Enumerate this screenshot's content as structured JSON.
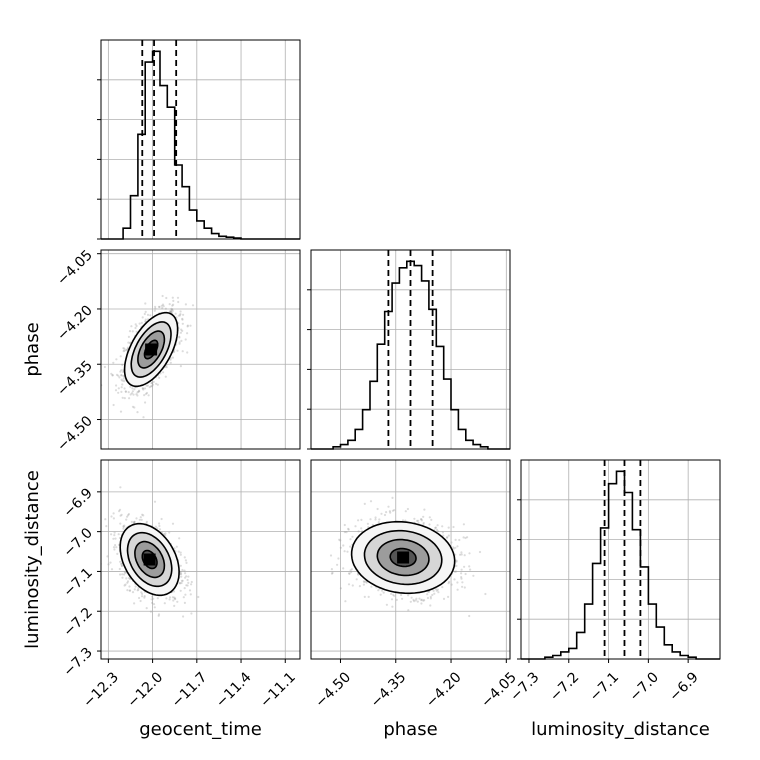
{
  "chart_data": {
    "type": "corner",
    "parameters": [
      "geocent_time",
      "phase",
      "luminosity_distance"
    ],
    "axis_labels": {
      "x": [
        "geocent_time",
        "phase",
        "luminosity_distance"
      ],
      "y": [
        "phase",
        "luminosity_distance"
      ]
    },
    "ranges": {
      "geocent_time": [
        -12.35,
        -11.0
      ],
      "phase": [
        -4.58,
        -4.04
      ],
      "luminosity_distance": [
        -7.32,
        -6.82
      ]
    },
    "ticks": {
      "geocent_time": [
        -12.3,
        -12.0,
        -11.7,
        -11.4,
        -11.1
      ],
      "phase": [
        -4.5,
        -4.35,
        -4.2,
        -4.05
      ],
      "luminosity_distance": [
        -7.3,
        -7.2,
        -7.1,
        -7.0,
        -6.9
      ]
    },
    "tick_labels": {
      "geocent_time": [
        "−12.3",
        "−12.0",
        "−11.7",
        "−11.4",
        "−11.1"
      ],
      "phase": [
        "−4.50",
        "−4.35",
        "−4.20",
        "−4.05"
      ],
      "luminosity_distance": [
        "−7.3",
        "−7.2",
        "−7.1",
        "−7.0",
        "−6.9"
      ]
    },
    "quantiles": {
      "geocent_time": [
        -12.07,
        -11.99,
        -11.84
      ],
      "phase": [
        -4.37,
        -4.31,
        -4.25
      ],
      "luminosity_distance": [
        -7.11,
        -7.06,
        -7.02
      ]
    },
    "histograms": {
      "geocent_time": {
        "bin_edges": [
          -12.35,
          -12.3,
          -12.25,
          -12.2,
          -12.15,
          -12.1,
          -12.05,
          -12.0,
          -11.95,
          -11.9,
          -11.85,
          -11.8,
          -11.75,
          -11.7,
          -11.65,
          -11.6,
          -11.55,
          -11.5,
          -11.45,
          -11.4,
          -11.35,
          -11.3,
          -11.25,
          -11.2,
          -11.15,
          -11.1,
          -11.05,
          -11.0
        ],
        "counts": [
          0,
          0,
          0,
          6,
          24,
          58,
          98,
          104,
          85,
          73,
          41,
          29,
          16,
          10,
          6,
          3,
          1.5,
          1,
          0.5,
          0,
          0,
          0,
          0,
          0,
          0,
          0,
          0
        ]
      },
      "phase": {
        "bin_edges": [
          -4.58,
          -4.56,
          -4.54,
          -4.52,
          -4.5,
          -4.48,
          -4.46,
          -4.44,
          -4.42,
          -4.4,
          -4.38,
          -4.36,
          -4.34,
          -4.32,
          -4.3,
          -4.28,
          -4.26,
          -4.24,
          -4.22,
          -4.2,
          -4.18,
          -4.16,
          -4.14,
          -4.12,
          -4.1,
          -4.08,
          -4.06,
          -4.04
        ],
        "counts": [
          0,
          0,
          0,
          1,
          2,
          4,
          9,
          18,
          31,
          48,
          63,
          76,
          83,
          86,
          84,
          77,
          64,
          47,
          32,
          18,
          9,
          4,
          2,
          1,
          0,
          0,
          0
        ]
      },
      "luminosity_distance": {
        "bin_edges": [
          -7.32,
          -7.3,
          -7.28,
          -7.26,
          -7.24,
          -7.22,
          -7.2,
          -7.18,
          -7.16,
          -7.14,
          -7.12,
          -7.1,
          -7.08,
          -7.06,
          -7.04,
          -7.02,
          -7.0,
          -6.98,
          -6.96,
          -6.94,
          -6.92,
          -6.9,
          -6.88,
          -6.86,
          -6.84,
          -6.82
        ],
        "counts": [
          0,
          0,
          0,
          1,
          2,
          4,
          6,
          15,
          31,
          54,
          74,
          99,
          106,
          94,
          73,
          52,
          31,
          18,
          8,
          4,
          2,
          1,
          0,
          0,
          0
        ]
      }
    },
    "joint": [
      {
        "x": "geocent_time",
        "y": "phase",
        "mean": [
          -12.01,
          -4.31
        ],
        "sd": [
          0.09,
          0.05
        ],
        "corr": 0.55
      },
      {
        "x": "geocent_time",
        "y": "luminosity_distance",
        "mean": [
          -12.02,
          -7.07
        ],
        "sd": [
          0.1,
          0.045
        ],
        "corr": -0.35
      },
      {
        "x": "phase",
        "y": "luminosity_distance",
        "mean": [
          -4.33,
          -7.065
        ],
        "sd": [
          0.07,
          0.045
        ],
        "corr": -0.1
      }
    ],
    "contour_levels": [
      0.5,
      1.0,
      1.5,
      2.0
    ],
    "grid": true,
    "colors": {
      "line": "#000000",
      "scatter": "#9a9a9a",
      "grid": "#b0b0b0"
    }
  }
}
